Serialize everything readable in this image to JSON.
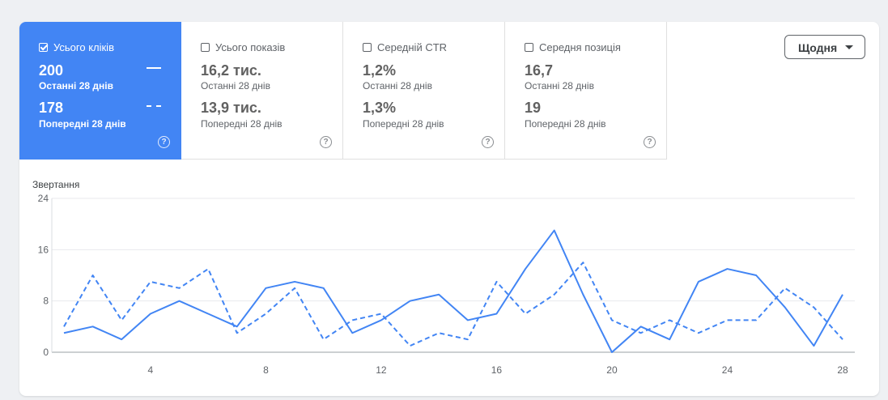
{
  "tiles": [
    {
      "label": "Усього кліків",
      "current": "200",
      "current_label": "Останні 28 днів",
      "previous": "178",
      "previous_label": "Попередні 28 днів",
      "active": true
    },
    {
      "label": "Усього показів",
      "current": "16,2 тис.",
      "current_label": "Останні 28 днів",
      "previous": "13,9 тис.",
      "previous_label": "Попередні 28 днів",
      "active": false
    },
    {
      "label": "Середній CTR",
      "current": "1,2%",
      "current_label": "Останні 28 днів",
      "previous": "1,3%",
      "previous_label": "Попередні 28 днів",
      "active": false
    },
    {
      "label": "Середня позиція",
      "current": "16,7",
      "current_label": "Останні 28 днів",
      "previous": "19",
      "previous_label": "Попередні 28 днів",
      "active": false
    }
  ],
  "help_icon": "?",
  "dropdown": {
    "label": "Щодня"
  },
  "accent_color": "#4285f4",
  "chart_data": {
    "type": "line",
    "ylabel": "Звертання",
    "ylim": [
      0,
      24
    ],
    "yticks": [
      0,
      8,
      16,
      24
    ],
    "xticks": [
      4,
      8,
      12,
      16,
      20,
      24,
      28
    ],
    "x": [
      1,
      2,
      3,
      4,
      5,
      6,
      7,
      8,
      9,
      10,
      11,
      12,
      13,
      14,
      15,
      16,
      17,
      18,
      19,
      20,
      21,
      22,
      23,
      24,
      25,
      26,
      27,
      28
    ],
    "series": [
      {
        "style": "solid",
        "values": [
          3,
          4,
          2,
          6,
          8,
          6,
          4,
          10,
          11,
          10,
          3,
          5,
          8,
          9,
          5,
          6,
          13,
          19,
          9,
          0,
          4,
          2,
          11,
          13,
          12,
          7,
          1,
          9
        ]
      },
      {
        "style": "dashed",
        "values": [
          4,
          12,
          5,
          11,
          10,
          13,
          3,
          6,
          10,
          2,
          5,
          6,
          1,
          3,
          2,
          11,
          6,
          9,
          14,
          5,
          3,
          5,
          3,
          5,
          5,
          10,
          7,
          2
        ]
      }
    ],
    "grid": true
  }
}
